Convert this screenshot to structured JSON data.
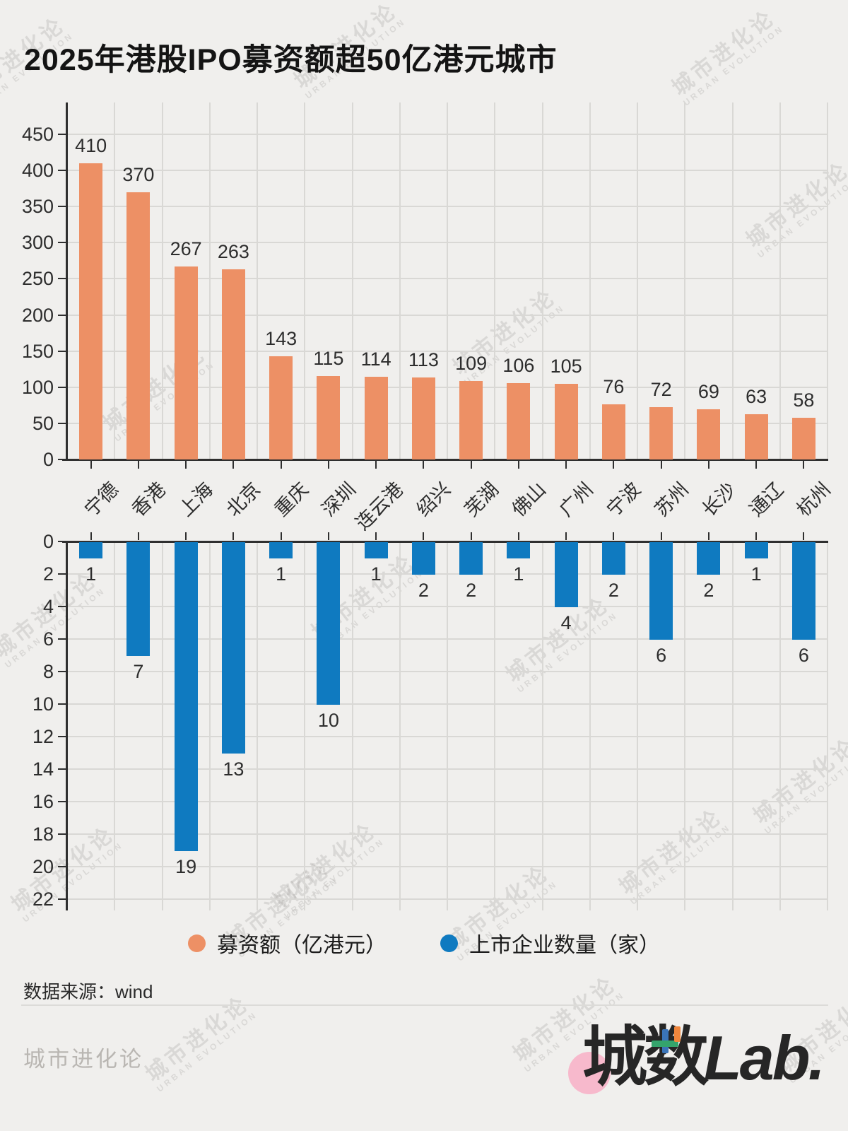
{
  "title": "2025年港股IPO募资额超50亿港元城市",
  "colors": {
    "background": "#f0efed",
    "bar_orange": "#ED9065",
    "bar_blue": "#0F7AC0",
    "axis": "#2f2f2f",
    "grid": "#d9d8d5",
    "label": "#2d2d2d"
  },
  "chart_data": {
    "type": "bar",
    "categories": [
      "宁德",
      "香港",
      "上海",
      "北京",
      "重庆",
      "深圳",
      "连云港",
      "绍兴",
      "芜湖",
      "佛山",
      "广州",
      "宁波",
      "苏州",
      "长沙",
      "通辽",
      "杭州"
    ],
    "series": [
      {
        "name": "募资额（亿港元）",
        "color": "#ED9065",
        "orientation": "up",
        "values": [
          410,
          370,
          267,
          263,
          143,
          115,
          114,
          113,
          109,
          106,
          105,
          76,
          72,
          69,
          63,
          58
        ],
        "axis": {
          "min": 0,
          "max": 450,
          "step": 50
        }
      },
      {
        "name": "上市企业数量（家）",
        "color": "#0F7AC0",
        "orientation": "down",
        "values": [
          1,
          7,
          19,
          13,
          1,
          10,
          1,
          2,
          2,
          1,
          4,
          2,
          6,
          2,
          1,
          6
        ],
        "axis": {
          "min": 0,
          "max": 22,
          "step": 2
        }
      }
    ],
    "title": "2025年港股IPO募资额超50亿港元城市",
    "grid": true,
    "legend_position": "bottom"
  },
  "legend": [
    {
      "label": "募资额（亿港元）",
      "color": "#ED9065"
    },
    {
      "label": "上市企业数量（家）",
      "color": "#0F7AC0"
    }
  ],
  "source": "数据来源：wind",
  "footer": {
    "brand": "城市进化论",
    "logo": {
      "text_cn": "城数",
      "text_latin": "Lab.",
      "accents": {
        "pink": "#f7b9cc",
        "blue": "#3a74b8",
        "green": "#34a46c",
        "orange": "#f0863c"
      }
    }
  },
  "watermark": {
    "line1": "城市进化论",
    "line2": "URBAN EVOLUTION"
  }
}
